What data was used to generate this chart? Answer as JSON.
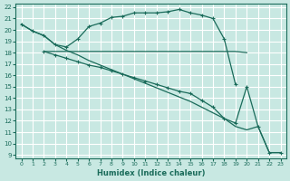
{
  "background_color": "#c8e8e2",
  "grid_color": "#ffffff",
  "line_color": "#1a6b5a",
  "xlabel": "Humidex (Indice chaleur)",
  "xlim": [
    -0.5,
    23.5
  ],
  "ylim": [
    8.7,
    22.3
  ],
  "yticks": [
    9,
    10,
    11,
    12,
    13,
    14,
    15,
    16,
    17,
    18,
    19,
    20,
    21,
    22
  ],
  "xticks": [
    0,
    1,
    2,
    3,
    4,
    5,
    6,
    7,
    8,
    9,
    10,
    11,
    12,
    13,
    14,
    15,
    16,
    17,
    18,
    19,
    20,
    21,
    22,
    23
  ],
  "curve1_x": [
    0,
    1,
    2,
    3,
    4,
    5,
    6,
    7,
    8,
    9,
    10,
    11,
    12,
    13,
    14,
    15,
    16,
    17,
    18,
    19
  ],
  "curve1_y": [
    20.5,
    19.9,
    19.5,
    18.7,
    18.5,
    19.2,
    20.3,
    20.6,
    21.1,
    21.2,
    21.5,
    21.5,
    21.5,
    21.6,
    21.8,
    21.5,
    21.3,
    21.0,
    19.2,
    15.2
  ],
  "curve2_x": [
    2,
    3,
    4,
    5,
    6,
    7,
    8,
    9,
    10,
    11,
    12,
    13,
    14,
    15,
    16,
    17,
    18,
    19,
    20
  ],
  "curve2_y": [
    18.1,
    18.1,
    18.1,
    18.1,
    18.1,
    18.1,
    18.1,
    18.1,
    18.1,
    18.1,
    18.1,
    18.1,
    18.1,
    18.1,
    18.1,
    18.1,
    18.1,
    18.1,
    18.0
  ],
  "curve3_x": [
    2,
    3,
    4,
    5,
    6,
    7,
    8,
    9,
    10,
    11,
    12,
    13,
    14,
    15,
    16,
    17,
    18,
    19,
    20,
    21,
    22,
    23
  ],
  "curve3_y": [
    18.1,
    17.8,
    17.5,
    17.2,
    16.9,
    16.7,
    16.4,
    16.1,
    15.8,
    15.5,
    15.2,
    14.9,
    14.6,
    14.4,
    13.8,
    13.2,
    12.2,
    11.8,
    15.0,
    11.5,
    9.2,
    9.2
  ],
  "curve4_x": [
    0,
    1,
    2,
    3,
    4,
    5,
    6,
    7,
    8,
    9,
    10,
    11,
    12,
    13,
    14,
    15,
    16,
    17,
    18,
    19,
    20,
    21,
    22,
    23
  ],
  "curve4_y": [
    20.5,
    19.9,
    19.5,
    18.7,
    18.2,
    17.8,
    17.3,
    16.9,
    16.5,
    16.1,
    15.7,
    15.3,
    14.9,
    14.5,
    14.1,
    13.7,
    13.2,
    12.7,
    12.2,
    11.5,
    11.2,
    11.5,
    9.2,
    9.2
  ]
}
